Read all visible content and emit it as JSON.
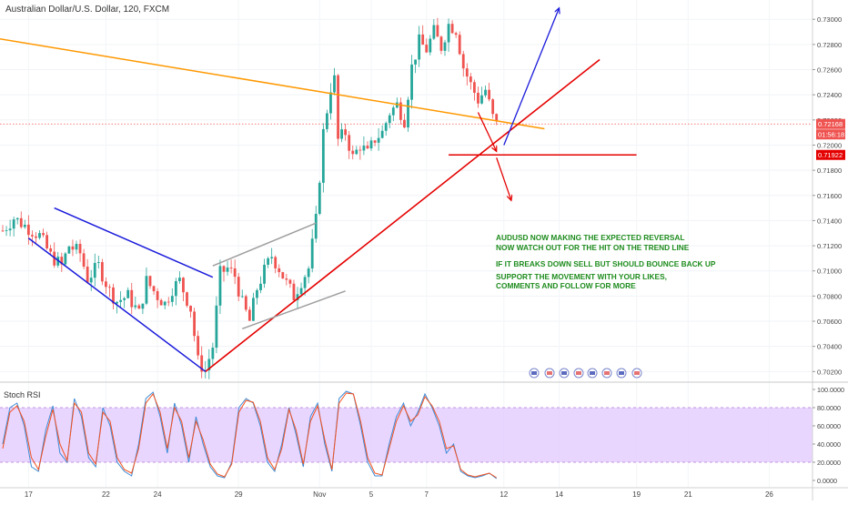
{
  "chart_data": [
    {
      "type": "candlestick",
      "title": "Australian Dollar/U.S. Dollar, 120, FXCM",
      "x_ticks": [
        "17",
        "22",
        "24",
        "29",
        "Nov",
        "5",
        "7",
        "12",
        "14",
        "19",
        "21",
        "26"
      ],
      "y_ticks": [
        "0.73000",
        "0.72800",
        "0.72600",
        "0.72400",
        "0.72200",
        "0.72000",
        "0.71800",
        "0.71600",
        "0.71400",
        "0.71200",
        "0.71000",
        "0.70800",
        "0.70600",
        "0.70400",
        "0.70200"
      ],
      "ylim": [
        0.7013,
        0.7311
      ],
      "last_price_label": "0.72168",
      "countdown_label": "01:56:18",
      "marked_level_label": "0.71922",
      "last_price": 0.72168,
      "marked_level": 0.71922,
      "price_path": [
        [
          0,
          0.7132
        ],
        [
          3,
          0.7142
        ],
        [
          6,
          0.7136
        ],
        [
          10,
          0.7128
        ],
        [
          13,
          0.7112
        ],
        [
          16,
          0.7104
        ],
        [
          18,
          0.712
        ],
        [
          21,
          0.7114
        ],
        [
          23,
          0.7094
        ],
        [
          26,
          0.7104
        ],
        [
          29,
          0.7084
        ],
        [
          31,
          0.7076
        ],
        [
          34,
          0.708
        ],
        [
          37,
          0.7066
        ],
        [
          39,
          0.7092
        ],
        [
          42,
          0.708
        ],
        [
          44,
          0.7074
        ],
        [
          46,
          0.7086
        ],
        [
          48,
          0.7092
        ],
        [
          51,
          0.707
        ],
        [
          53,
          0.7028
        ],
        [
          55,
          0.7021
        ],
        [
          57,
          0.704
        ],
        [
          59,
          0.7098
        ],
        [
          61,
          0.7102
        ],
        [
          63,
          0.7096
        ],
        [
          65,
          0.7074
        ],
        [
          67,
          0.706
        ],
        [
          69,
          0.7086
        ],
        [
          71,
          0.71
        ],
        [
          73,
          0.7112
        ],
        [
          75,
          0.7102
        ],
        [
          77,
          0.709
        ],
        [
          79,
          0.708
        ],
        [
          81,
          0.7092
        ],
        [
          83,
          0.7102
        ],
        [
          85,
          0.714
        ],
        [
          87,
          0.721
        ],
        [
          89,
          0.7246
        ],
        [
          90,
          0.7252
        ],
        [
          91,
          0.7204
        ],
        [
          93,
          0.721
        ],
        [
          95,
          0.719
        ],
        [
          97,
          0.72
        ],
        [
          99,
          0.7193
        ],
        [
          101,
          0.7205
        ],
        [
          103,
          0.721
        ],
        [
          105,
          0.7226
        ],
        [
          107,
          0.7232
        ],
        [
          109,
          0.722
        ],
        [
          111,
          0.7262
        ],
        [
          113,
          0.7282
        ],
        [
          115,
          0.7276
        ],
        [
          117,
          0.729
        ],
        [
          119,
          0.7278
        ],
        [
          121,
          0.7296
        ],
        [
          123,
          0.7292
        ],
        [
          125,
          0.7262
        ],
        [
          127,
          0.7248
        ],
        [
          129,
          0.7236
        ],
        [
          131,
          0.7244
        ],
        [
          133,
          0.7222
        ],
        [
          134,
          0.7216
        ]
      ],
      "overlays": [
        {
          "name": "descending-resistance",
          "color": "#ff9800",
          "points": [
            [
              -2,
              0.7285
            ],
            [
              147,
              0.7213
            ]
          ]
        },
        {
          "name": "rising-trendline",
          "color": "#e50000",
          "points": [
            [
              55,
              0.702
            ],
            [
              162,
              0.7268
            ]
          ]
        },
        {
          "name": "horizontal-support",
          "color": "#e50000",
          "points": [
            [
              121,
              0.71922
            ],
            [
              172,
              0.71922
            ]
          ]
        },
        {
          "name": "channel-upper",
          "color": "#1a1adb",
          "points": [
            [
              14,
              0.715
            ],
            [
              57,
              0.7095
            ]
          ]
        },
        {
          "name": "channel-lower",
          "color": "#1a1adb",
          "points": [
            [
              7,
              0.7126
            ],
            [
              55,
              0.702
            ]
          ]
        },
        {
          "name": "wedge-upper",
          "color": "#9e9e9e",
          "points": [
            [
              57,
              0.7104
            ],
            [
              85,
              0.7138
            ]
          ]
        },
        {
          "name": "wedge-lower",
          "color": "#9e9e9e",
          "points": [
            [
              65,
              0.7054
            ],
            [
              93,
              0.7084
            ]
          ]
        },
        {
          "name": "arrow-down-1",
          "color": "#e50000",
          "arrow": true,
          "points": [
            [
              129,
              0.7226
            ],
            [
              134,
              0.7195
            ]
          ]
        },
        {
          "name": "arrow-down-2",
          "color": "#e50000",
          "arrow": true,
          "points": [
            [
              134,
              0.719
            ],
            [
              138,
              0.7156
            ]
          ]
        },
        {
          "name": "arrow-up",
          "color": "#1a1adb",
          "arrow": true,
          "points": [
            [
              136,
              0.72
            ],
            [
              151,
              0.7309
            ]
          ]
        }
      ],
      "annotations": [
        "AUDUSD  NOW MAKING THE EXPECTED REVERSAL",
        "NOW WATCH OUT FOR THE HIT ON THE TREND LINE",
        "IF IT BREAKS DOWN SELL BUT SHOULD BOUNCE BACK UP",
        "SUPPORT THE MOVEMENT WITH YOUR LIKES,",
        "COMMENTS AND FOLLOW FOR MORE"
      ],
      "annotation_color": "#1e8c1e",
      "colors": {
        "up": "#26a69a",
        "down": "#ef5350"
      }
    },
    {
      "type": "line",
      "title": "Stoch RSI",
      "y_ticks": [
        "100.0000",
        "80.0000",
        "60.0000",
        "40.0000",
        "20.0000",
        "0.0000"
      ],
      "ylim": [
        0,
        100
      ],
      "band": [
        20,
        80
      ],
      "band_color": "#e1c8ff",
      "series": [
        {
          "color": "#3d8bd6",
          "values": [
            40,
            80,
            85,
            60,
            15,
            10,
            55,
            82,
            30,
            20,
            90,
            70,
            25,
            15,
            80,
            60,
            20,
            10,
            5,
            40,
            90,
            97,
            70,
            30,
            85,
            60,
            20,
            70,
            40,
            15,
            5,
            3,
            20,
            80,
            90,
            85,
            60,
            20,
            10,
            40,
            80,
            50,
            15,
            70,
            85,
            40,
            10,
            90,
            98,
            95,
            60,
            20,
            5,
            5,
            40,
            70,
            85,
            60,
            75,
            95,
            80,
            60,
            30,
            40,
            10,
            5,
            3,
            5,
            8,
            2
          ]
        },
        {
          "color": "#f4511e",
          "values": [
            35,
            75,
            82,
            65,
            25,
            12,
            48,
            78,
            40,
            22,
            85,
            75,
            30,
            18,
            75,
            65,
            25,
            12,
            8,
            35,
            85,
            95,
            75,
            35,
            80,
            65,
            25,
            65,
            45,
            18,
            7,
            4,
            18,
            75,
            88,
            86,
            65,
            25,
            12,
            35,
            78,
            55,
            18,
            65,
            82,
            45,
            12,
            85,
            96,
            95,
            65,
            25,
            8,
            6,
            35,
            65,
            82,
            65,
            72,
            92,
            82,
            65,
            35,
            38,
            12,
            6,
            4,
            6,
            8,
            3
          ]
        }
      ]
    }
  ],
  "sidebar_icons": [
    "flag-icon",
    "flag-icon",
    "flag-icon",
    "flag-icon",
    "flag-icon",
    "flag-icon",
    "flag-icon",
    "flag-icon"
  ]
}
